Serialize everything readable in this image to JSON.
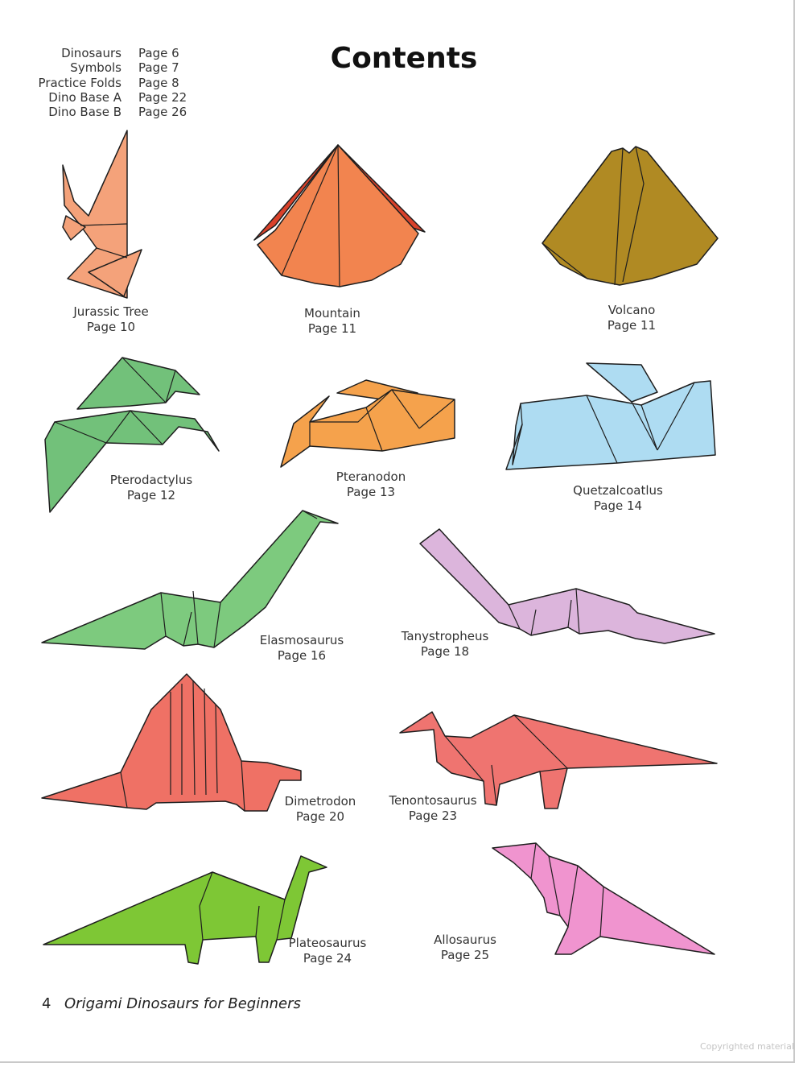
{
  "page_title": "Contents",
  "toc": [
    {
      "name": "Dinosaurs",
      "page": "Page 6"
    },
    {
      "name": "Symbols",
      "page": "Page 7"
    },
    {
      "name": "Practice Folds",
      "page": "Page 8"
    },
    {
      "name": "Dino Base A",
      "page": "Page 22"
    },
    {
      "name": "Dino Base B",
      "page": "Page 26"
    }
  ],
  "models": {
    "jurassic_tree": {
      "name": "Jurassic Tree",
      "page": "Page 10",
      "color": "#f4a27a"
    },
    "mountain": {
      "name": "Mountain",
      "page": "Page 11",
      "color": "#f2844f"
    },
    "volcano": {
      "name": "Volcano",
      "page": "Page 11",
      "color": "#b08a23"
    },
    "pterodactylus": {
      "name": "Pterodactylus",
      "page": "Page 12",
      "color": "#72c17a"
    },
    "pteranodon": {
      "name": "Pteranodon",
      "page": "Page 13",
      "color": "#f5a24c"
    },
    "quetzalcoatlus": {
      "name": "Quetzalcoatlus",
      "page": "Page 14",
      "color": "#aedcf2"
    },
    "elasmosaurus": {
      "name": "Elasmosaurus",
      "page": "Page 16",
      "color": "#7dca7e"
    },
    "tanystropheus": {
      "name": "Tanystropheus",
      "page": "Page 18",
      "color": "#dcb5dc"
    },
    "dimetrodon": {
      "name": "Dimetrodon",
      "page": "Page 20",
      "color": "#ef7165"
    },
    "tenontosaurus": {
      "name": "Tenontosaurus",
      "page": "Page 23",
      "color": "#ef7470"
    },
    "plateosaurus": {
      "name": "Plateosaurus",
      "page": "Page 24",
      "color": "#7ec735"
    },
    "allosaurus": {
      "name": "Allosaurus",
      "page": "Page 25",
      "color": "#f094cf"
    }
  },
  "footer": {
    "page_number": "4",
    "book_title": "Origami Dinosaurs for Beginners"
  },
  "copyright": "Copyrighted material"
}
